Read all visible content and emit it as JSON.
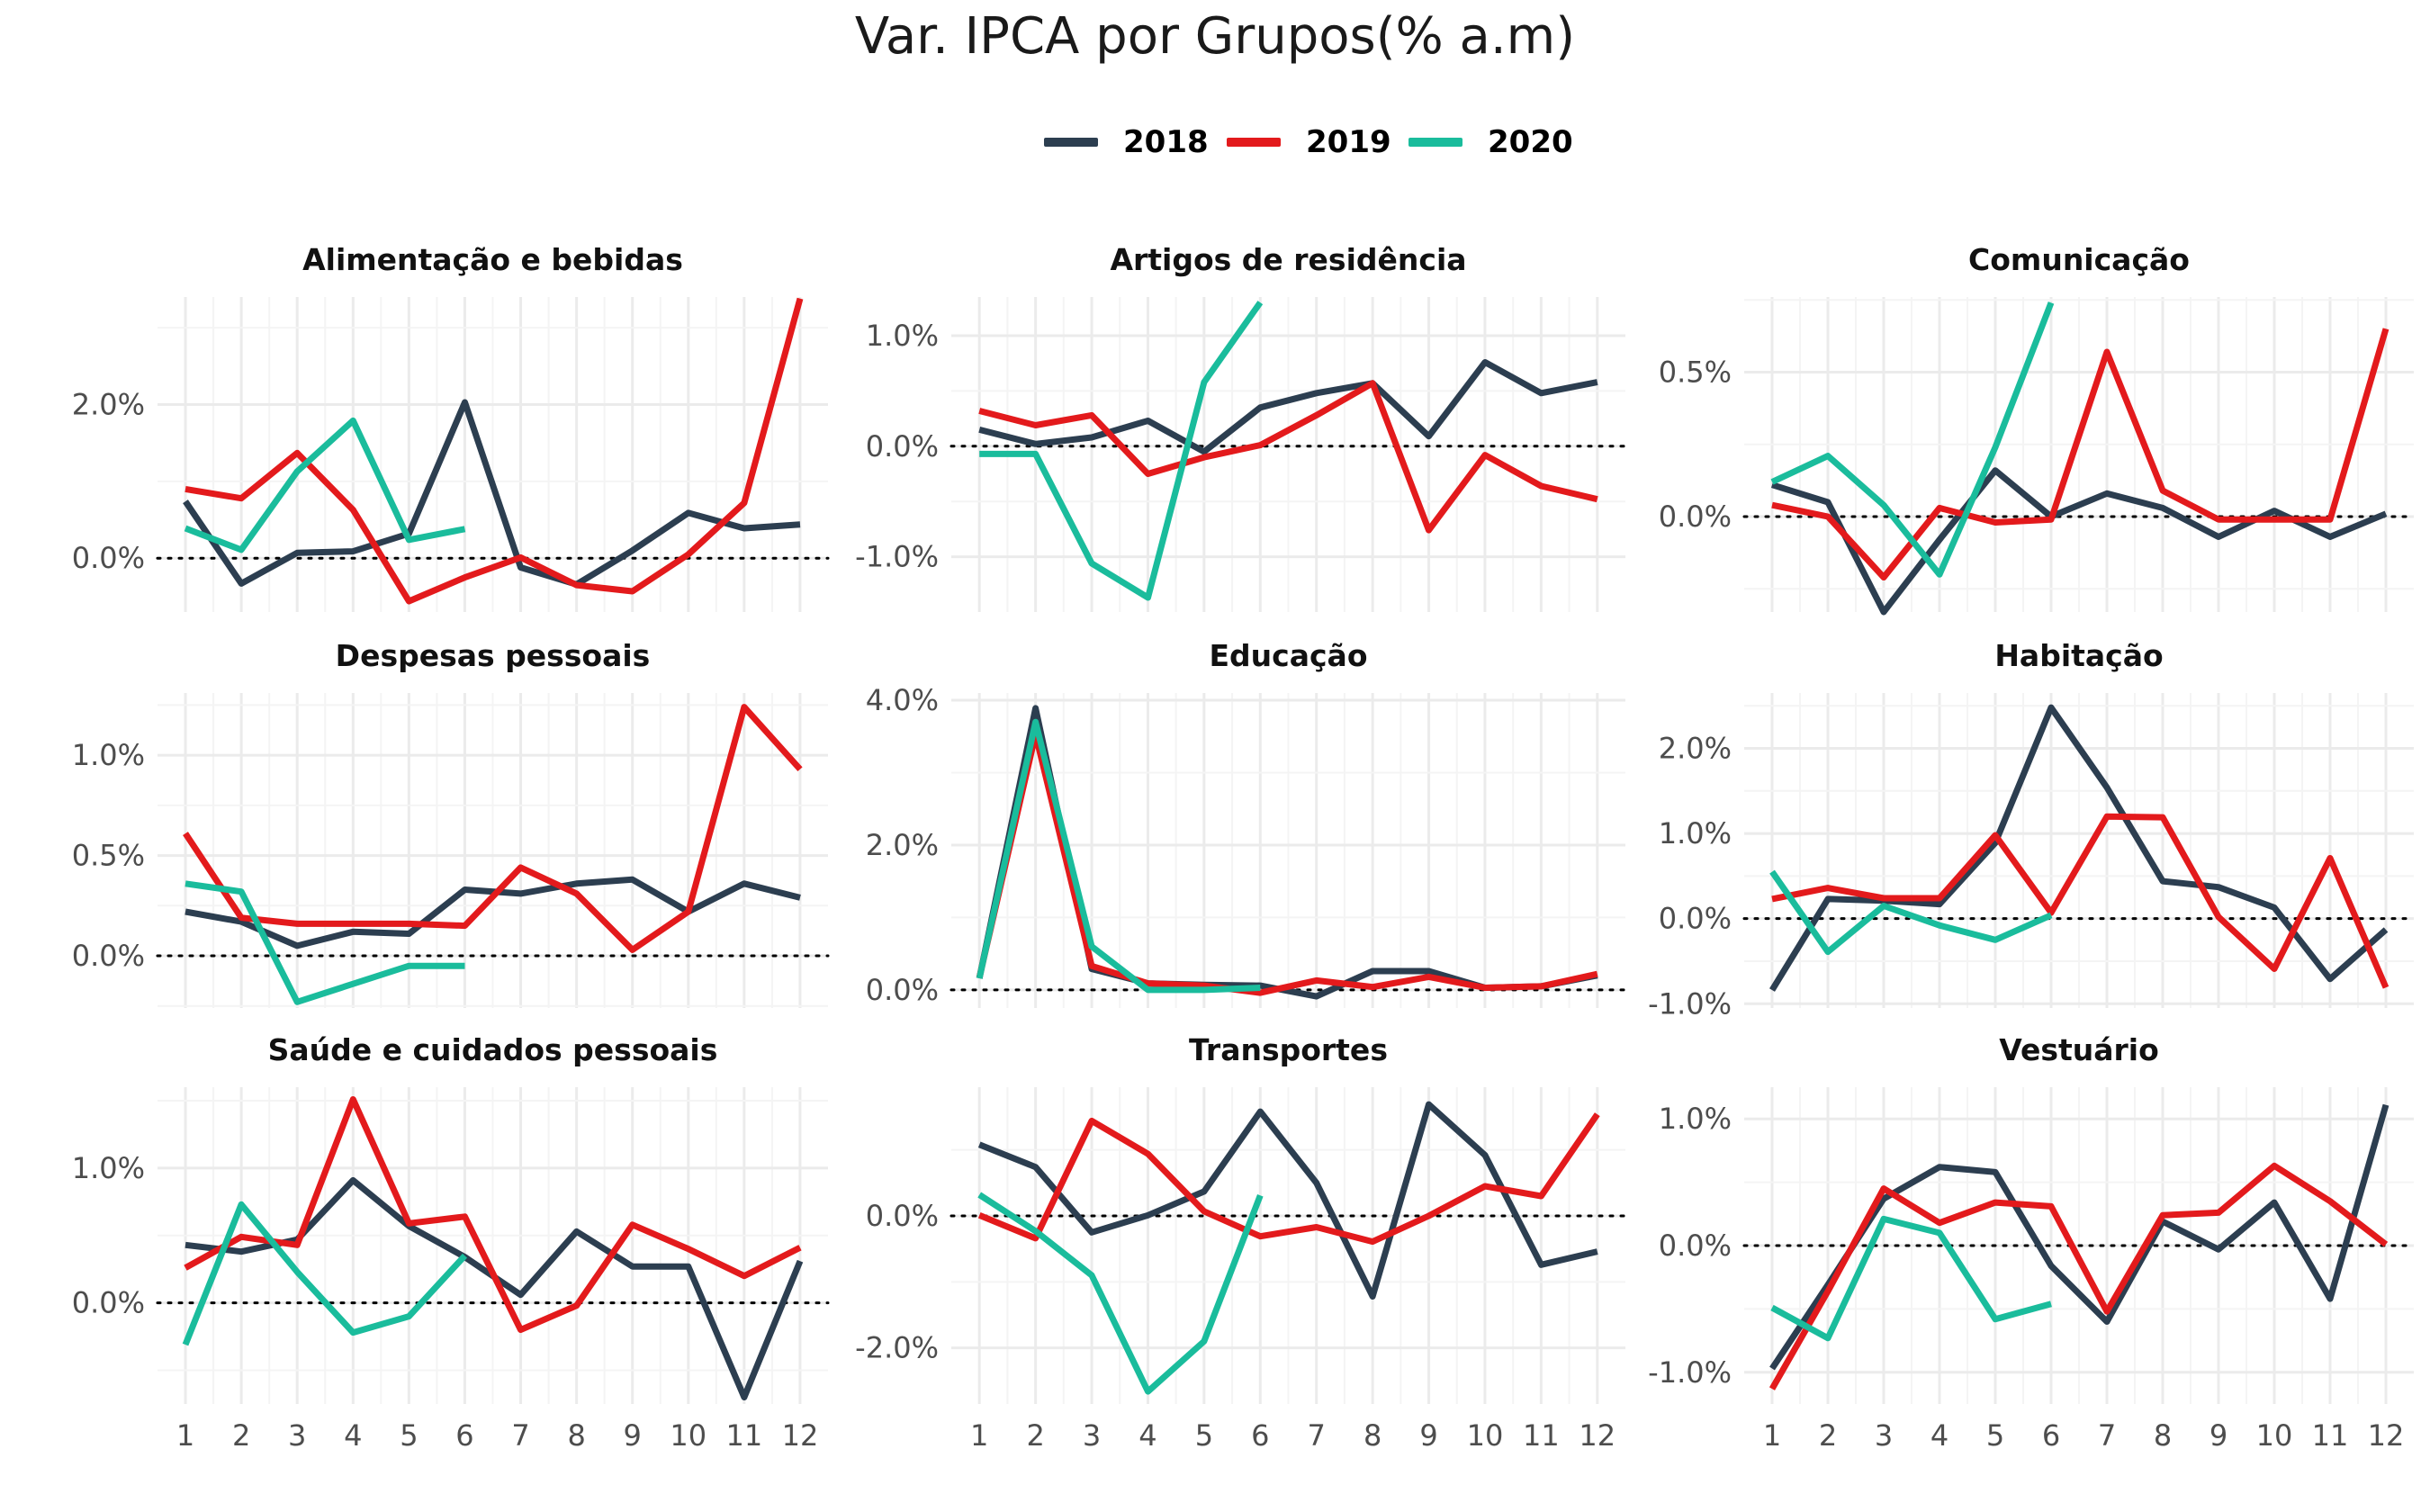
{
  "chart_data": {
    "type": "line",
    "title": "Var. IPCA por Grupos(% a.m)",
    "legend_position": "top",
    "grid": true,
    "zero_line": "dotted",
    "series_names": [
      "2018",
      "2019",
      "2020"
    ],
    "colors": {
      "2018": "#2c3e50",
      "2019": "#e31a1c",
      "2020": "#1abc9c"
    },
    "x_ticks": [
      "1",
      "2",
      "3",
      "4",
      "5",
      "6",
      "7",
      "8",
      "9",
      "10",
      "11",
      "12"
    ],
    "panels": [
      {
        "title": "Alimentação e bebidas",
        "ylim": [
          -0.7,
          3.4
        ],
        "y_ticks": [
          {
            "v": 0,
            "label": "0.0%"
          },
          {
            "v": 2,
            "label": "2.0%"
          }
        ],
        "series": [
          {
            "name": "2018",
            "values": [
              0.74,
              -0.33,
              0.07,
              0.09,
              0.32,
              2.03,
              -0.12,
              -0.34,
              0.1,
              0.59,
              0.39,
              0.44
            ]
          },
          {
            "name": "2019",
            "values": [
              0.9,
              0.78,
              1.37,
              0.63,
              -0.56,
              -0.25,
              0.01,
              -0.35,
              -0.43,
              0.05,
              0.72,
              3.38
            ]
          },
          {
            "name": "2020",
            "values": [
              0.39,
              0.11,
              1.13,
              1.79,
              0.24,
              0.38
            ]
          }
        ]
      },
      {
        "title": "Artigos de residência",
        "ylim": [
          -1.5,
          1.35
        ],
        "y_ticks": [
          {
            "v": -1,
            "label": "-1.0%"
          },
          {
            "v": 0,
            "label": "0.0%"
          },
          {
            "v": 1,
            "label": "1.0%"
          }
        ],
        "series": [
          {
            "name": "2018",
            "values": [
              0.15,
              0.02,
              0.08,
              0.23,
              -0.05,
              0.35,
              0.48,
              0.57,
              0.09,
              0.76,
              0.48,
              0.58
            ]
          },
          {
            "name": "2019",
            "values": [
              0.32,
              0.19,
              0.28,
              -0.25,
              -0.1,
              0.01,
              0.28,
              0.57,
              -0.76,
              -0.08,
              -0.36,
              -0.48
            ]
          },
          {
            "name": "2020",
            "values": [
              -0.07,
              -0.07,
              -1.06,
              -1.37,
              0.58,
              1.3
            ]
          }
        ]
      },
      {
        "title": "Comunicação",
        "ylim": [
          -0.33,
          0.76
        ],
        "y_ticks": [
          {
            "v": 0,
            "label": "0.0%"
          },
          {
            "v": 0.5,
            "label": "0.5%"
          }
        ],
        "series": [
          {
            "name": "2018",
            "values": [
              0.11,
              0.05,
              -0.33,
              -0.08,
              0.16,
              0.0,
              0.08,
              0.03,
              -0.07,
              0.02,
              -0.07,
              0.01
            ]
          },
          {
            "name": "2019",
            "values": [
              0.04,
              0.0,
              -0.21,
              0.03,
              -0.02,
              -0.01,
              0.57,
              0.09,
              -0.01,
              -0.01,
              -0.01,
              0.65
            ]
          },
          {
            "name": "2020",
            "values": [
              0.12,
              0.21,
              0.04,
              -0.2,
              0.24,
              0.74
            ]
          }
        ]
      },
      {
        "title": "Despesas pessoais",
        "ylim": [
          -0.26,
          1.31
        ],
        "y_ticks": [
          {
            "v": 0,
            "label": "0.0%"
          },
          {
            "v": 0.5,
            "label": "0.5%"
          },
          {
            "v": 1,
            "label": "1.0%"
          }
        ],
        "series": [
          {
            "name": "2018",
            "values": [
              0.22,
              0.17,
              0.05,
              0.12,
              0.11,
              0.33,
              0.31,
              0.36,
              0.38,
              0.22,
              0.36,
              0.29
            ]
          },
          {
            "name": "2019",
            "values": [
              0.61,
              0.19,
              0.16,
              0.16,
              0.16,
              0.15,
              0.44,
              0.31,
              0.03,
              0.22,
              1.24,
              0.93
            ]
          },
          {
            "name": "2020",
            "values": [
              0.36,
              0.32,
              -0.23,
              -0.14,
              -0.05,
              -0.05
            ]
          }
        ]
      },
      {
        "title": "Educação",
        "ylim": [
          -0.25,
          4.1
        ],
        "y_ticks": [
          {
            "v": 0,
            "label": "0.0%"
          },
          {
            "v": 2,
            "label": "2.0%"
          },
          {
            "v": 4,
            "label": "4.0%"
          }
        ],
        "series": [
          {
            "name": "2018",
            "values": [
              0.16,
              3.89,
              0.29,
              0.09,
              0.07,
              0.06,
              -0.09,
              0.26,
              0.26,
              0.03,
              0.05,
              0.2
            ]
          },
          {
            "name": "2019",
            "values": [
              0.17,
              3.53,
              0.33,
              0.09,
              0.06,
              -0.04,
              0.13,
              0.04,
              0.18,
              0.03,
              0.05,
              0.22
            ]
          },
          {
            "name": "2020",
            "values": [
              0.16,
              3.7,
              0.6,
              0.0,
              0.0,
              0.03
            ]
          }
        ]
      },
      {
        "title": "Habitação",
        "ylim": [
          -1.05,
          2.65
        ],
        "y_ticks": [
          {
            "v": -1,
            "label": "-1.0%"
          },
          {
            "v": 0,
            "label": "0.0%"
          },
          {
            "v": 1,
            "label": "1.0%"
          },
          {
            "v": 2,
            "label": "2.0%"
          }
        ],
        "series": [
          {
            "name": "2018",
            "values": [
              -0.84,
              0.23,
              0.21,
              0.17,
              0.89,
              2.48,
              1.54,
              0.44,
              0.37,
              0.13,
              -0.71,
              -0.13
            ]
          },
          {
            "name": "2019",
            "values": [
              0.23,
              0.36,
              0.24,
              0.24,
              0.98,
              0.07,
              1.2,
              1.19,
              0.02,
              -0.59,
              0.71,
              -0.81
            ]
          },
          {
            "name": "2020",
            "values": [
              0.55,
              -0.39,
              0.15,
              -0.08,
              -0.25,
              0.04
            ]
          }
        ]
      },
      {
        "title": "Saúde e cuidados pessoais",
        "ylim": [
          -0.75,
          1.6
        ],
        "y_ticks": [
          {
            "v": 0,
            "label": "0.0%"
          },
          {
            "v": 1,
            "label": "1.0%"
          }
        ],
        "series": [
          {
            "name": "2018",
            "values": [
              0.43,
              0.38,
              0.47,
              0.91,
              0.57,
              0.34,
              0.06,
              0.53,
              0.27,
              0.27,
              -0.7,
              0.31
            ]
          },
          {
            "name": "2019",
            "values": [
              0.26,
              0.49,
              0.43,
              1.51,
              0.59,
              0.64,
              -0.2,
              -0.02,
              0.58,
              0.4,
              0.2,
              0.41
            ]
          },
          {
            "name": "2020",
            "values": [
              -0.31,
              0.73,
              0.23,
              -0.22,
              -0.1,
              0.35
            ]
          }
        ]
      },
      {
        "title": "Transportes",
        "ylim": [
          -2.85,
          1.95
        ],
        "y_ticks": [
          {
            "v": -2,
            "label": "-2.0%"
          },
          {
            "v": 0,
            "label": "0.0%"
          }
        ],
        "series": [
          {
            "name": "2018",
            "values": [
              1.08,
              0.74,
              -0.25,
              0.01,
              0.37,
              1.58,
              0.5,
              -1.22,
              1.69,
              0.92,
              -0.74,
              -0.54
            ]
          },
          {
            "name": "2019",
            "values": [
              0.01,
              -0.34,
              1.44,
              0.94,
              0.07,
              -0.31,
              -0.17,
              -0.39,
              0.0,
              0.45,
              0.3,
              1.54
            ]
          },
          {
            "name": "2020",
            "values": [
              0.32,
              -0.23,
              -0.9,
              -2.66,
              -1.9,
              0.31
            ]
          }
        ]
      },
      {
        "title": "Vestuário",
        "ylim": [
          -1.25,
          1.25
        ],
        "y_ticks": [
          {
            "v": -1,
            "label": "-1.0%"
          },
          {
            "v": 0,
            "label": "0.0%"
          },
          {
            "v": 1,
            "label": "1.0%"
          }
        ],
        "series": [
          {
            "name": "2018",
            "values": [
              -0.97,
              -0.31,
              0.37,
              0.62,
              0.58,
              -0.16,
              -0.6,
              0.19,
              -0.03,
              0.34,
              -0.42,
              1.11
            ]
          },
          {
            "name": "2019",
            "values": [
              -1.13,
              -0.36,
              0.45,
              0.18,
              0.34,
              0.31,
              -0.52,
              0.24,
              0.26,
              0.63,
              0.35,
              0.01
            ]
          },
          {
            "name": "2020",
            "values": [
              -0.49,
              -0.73,
              0.21,
              0.1,
              -0.58,
              -0.46
            ]
          }
        ]
      }
    ]
  }
}
